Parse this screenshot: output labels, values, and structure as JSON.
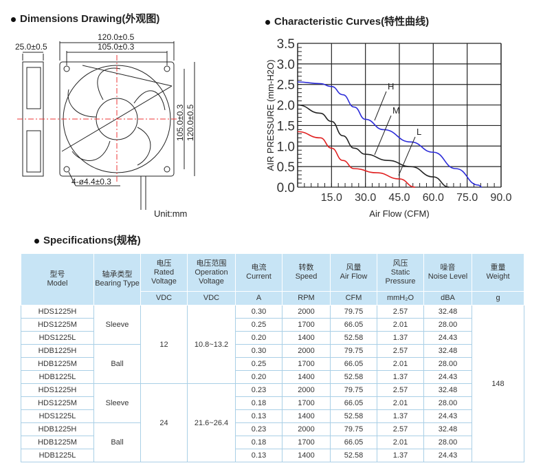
{
  "sections": {
    "dimensions": "Dimensions Drawing(外观图)",
    "curves": "Characteristic Curves(特性曲线)",
    "specs": "Specifications(规格)"
  },
  "drawing": {
    "side_width": "25.0±0.5",
    "outer_width": "120.0±0.5",
    "hole_pitch": "105.0±0.3",
    "hole_pitch_v": "105.0±0.3",
    "outer_height": "120.0±0.5",
    "holes": "4-ø4.4±0.3",
    "unit": "Unit:mm"
  },
  "chart_data": {
    "type": "line",
    "xlabel": "Air Flow (CFM)",
    "ylabel": "AIR PRESSURE (mm-H2O)",
    "xlim": [
      0,
      90
    ],
    "ylim": [
      0,
      3.5
    ],
    "xticks": [
      "15.0",
      "30.0",
      "45.0",
      "60.0",
      "75.0",
      "90.0"
    ],
    "yticks": [
      "0.0",
      "0.5",
      "1.0",
      "1.5",
      "2.0",
      "2.5",
      "3.0",
      "3.5"
    ],
    "grid": true,
    "series": [
      {
        "name": "H",
        "color": "#2b2bd8",
        "x": [
          0,
          10,
          15,
          20,
          25,
          30,
          38,
          50,
          60,
          70,
          80,
          81.5
        ],
        "y": [
          2.56,
          2.52,
          2.45,
          2.25,
          1.95,
          1.65,
          1.4,
          1.1,
          0.85,
          0.45,
          0.05,
          0
        ]
      },
      {
        "name": "M",
        "color": "#222222",
        "x": [
          0,
          10,
          15,
          20,
          25,
          30,
          40,
          50,
          60,
          67
        ],
        "y": [
          2.0,
          1.8,
          1.6,
          1.25,
          0.95,
          0.8,
          0.65,
          0.5,
          0.25,
          0
        ]
      },
      {
        "name": "L",
        "color": "#e02020",
        "x": [
          0,
          10,
          15,
          20,
          25,
          35,
          45,
          52
        ],
        "y": [
          1.35,
          1.2,
          0.95,
          0.65,
          0.45,
          0.35,
          0.2,
          0
        ]
      }
    ]
  },
  "table": {
    "headers": [
      {
        "cn": "型号",
        "en": "Model"
      },
      {
        "cn": "轴承类型",
        "en": "Bearing Type"
      },
      {
        "cn": "电压",
        "en": "Rated Voltage",
        "unit": "VDC"
      },
      {
        "cn": "电压范围",
        "en": "Operation Voltage",
        "unit": "VDC"
      },
      {
        "cn": "电流",
        "en": "Current",
        "unit": "A"
      },
      {
        "cn": "转数",
        "en": "Speed",
        "unit": "RPM"
      },
      {
        "cn": "风量",
        "en": "Air Flow",
        "unit": "CFM"
      },
      {
        "cn": "风压",
        "en": "Static Pressure",
        "unit": "mmH₂O"
      },
      {
        "cn": "噪音",
        "en": "Noise Level",
        "unit": "dBA"
      },
      {
        "cn": "重量",
        "en": "Weight",
        "unit": "g"
      }
    ],
    "groups": [
      {
        "voltage": "12",
        "range": "10.8~13.2",
        "bearings": [
          {
            "type": "Sleeve",
            "rows": [
              [
                "HDS1225H",
                "0.30",
                "2000",
                "79.75",
                "2.57",
                "32.48"
              ],
              [
                "HDS1225M",
                "0.25",
                "1700",
                "66.05",
                "2.01",
                "28.00"
              ],
              [
                "HDS1225L",
                "0.20",
                "1400",
                "52.58",
                "1.37",
                "24.43"
              ]
            ]
          },
          {
            "type": "Ball",
            "rows": [
              [
                "HDB1225H",
                "0.30",
                "2000",
                "79.75",
                "2.57",
                "32.48"
              ],
              [
                "HDB1225M",
                "0.25",
                "1700",
                "66.05",
                "2.01",
                "28.00"
              ],
              [
                "HDB1225L",
                "0.20",
                "1400",
                "52.58",
                "1.37",
                "24.43"
              ]
            ]
          }
        ]
      },
      {
        "voltage": "24",
        "range": "21.6~26.4",
        "bearings": [
          {
            "type": "Sleeve",
            "rows": [
              [
                "HDS1225H",
                "0.23",
                "2000",
                "79.75",
                "2.57",
                "32.48"
              ],
              [
                "HDS1225M",
                "0.18",
                "1700",
                "66.05",
                "2.01",
                "28.00"
              ],
              [
                "HDS1225L",
                "0.13",
                "1400",
                "52.58",
                "1.37",
                "24.43"
              ]
            ]
          },
          {
            "type": "Ball",
            "rows": [
              [
                "HDB1225H",
                "0.23",
                "2000",
                "79.75",
                "2.57",
                "32.48"
              ],
              [
                "HDB1225M",
                "0.18",
                "1700",
                "66.05",
                "2.01",
                "28.00"
              ],
              [
                "HDB1225L",
                "0.13",
                "1400",
                "52.58",
                "1.37",
                "24.43"
              ]
            ]
          }
        ]
      }
    ],
    "weight": "148"
  }
}
